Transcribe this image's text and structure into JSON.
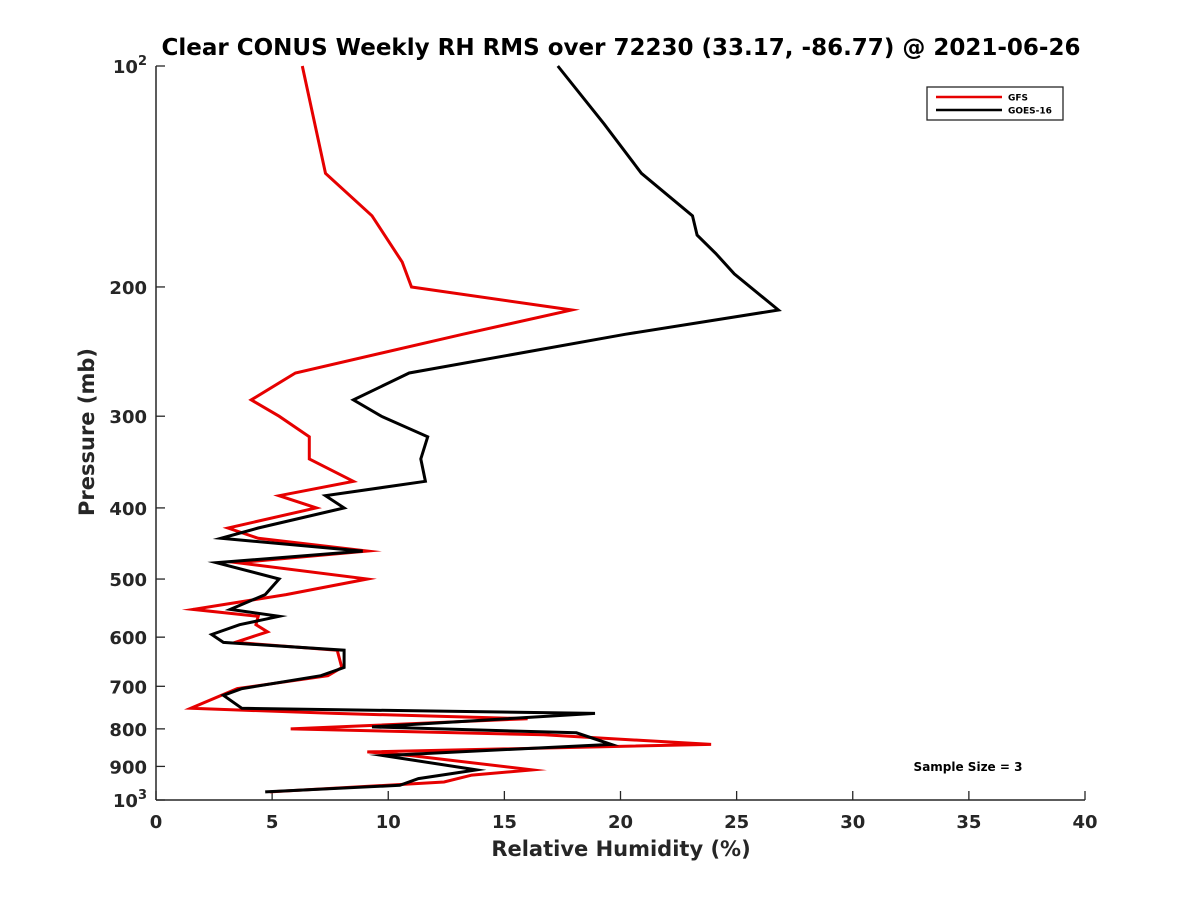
{
  "chart_data": {
    "type": "line",
    "title": "Clear CONUS Weekly RH RMS over 72230 (33.17, -86.77) @ 2021-06-26",
    "xlabel": "Relative Humidity (%)",
    "ylabel": "Pressure (mb)",
    "xlim": [
      0,
      40
    ],
    "ylim": [
      100,
      1000
    ],
    "yscale": "log",
    "y_reversed": true,
    "x_ticks": [
      0,
      5,
      10,
      15,
      20,
      25,
      30,
      35,
      40
    ],
    "x_tick_labels": [
      "0",
      "5",
      "10",
      "15",
      "20",
      "25",
      "30",
      "35",
      "40"
    ],
    "y_ticks": [
      100,
      200,
      300,
      400,
      500,
      600,
      700,
      800,
      900,
      1000
    ],
    "y_tick_labels": [
      {
        "base": "10",
        "sup": "2"
      },
      {
        "base": "200"
      },
      {
        "base": "300"
      },
      {
        "base": "400"
      },
      {
        "base": "500"
      },
      {
        "base": "600"
      },
      {
        "base": "700"
      },
      {
        "base": "800"
      },
      {
        "base": "900"
      },
      {
        "base": "10",
        "sup": "3"
      }
    ],
    "legend_position": "top-right",
    "annotation": "Sample Size = 3",
    "series": [
      {
        "name": "GFS",
        "color": "#e60000",
        "points": [
          [
            6.3,
            100
          ],
          [
            7.3,
            140
          ],
          [
            9.3,
            160
          ],
          [
            10.6,
            185
          ],
          [
            11.0,
            200
          ],
          [
            17.9,
            215
          ],
          [
            13.2,
            232
          ],
          [
            6.0,
            262
          ],
          [
            4.1,
            285
          ],
          [
            5.3,
            300
          ],
          [
            6.6,
            320
          ],
          [
            6.6,
            343
          ],
          [
            8.5,
            368
          ],
          [
            5.3,
            385
          ],
          [
            6.9,
            400
          ],
          [
            3.1,
            426
          ],
          [
            4.4,
            440
          ],
          [
            9.1,
            458
          ],
          [
            3.5,
            475
          ],
          [
            9.1,
            500
          ],
          [
            5.6,
            525
          ],
          [
            1.6,
            550
          ],
          [
            4.4,
            562
          ],
          [
            4.3,
            577
          ],
          [
            4.8,
            590
          ],
          [
            3.4,
            610
          ],
          [
            7.8,
            625
          ],
          [
            8.0,
            660
          ],
          [
            7.4,
            677
          ],
          [
            3.5,
            705
          ],
          [
            1.5,
            750
          ],
          [
            7.7,
            762
          ],
          [
            16.0,
            775
          ],
          [
            5.8,
            800
          ],
          [
            16.7,
            815
          ],
          [
            23.9,
            840
          ],
          [
            9.1,
            860
          ],
          [
            11.0,
            870
          ],
          [
            16.2,
            910
          ],
          [
            13.6,
            925
          ],
          [
            12.4,
            945
          ],
          [
            4.9,
            975
          ]
        ]
      },
      {
        "name": "GOES-16",
        "color": "#000000",
        "points": [
          [
            17.3,
            100
          ],
          [
            19.3,
            120
          ],
          [
            20.9,
            140
          ],
          [
            23.1,
            160
          ],
          [
            23.3,
            170
          ],
          [
            24.1,
            180
          ],
          [
            24.9,
            192
          ],
          [
            26.8,
            215
          ],
          [
            20.2,
            232
          ],
          [
            10.9,
            262
          ],
          [
            8.5,
            285
          ],
          [
            9.7,
            300
          ],
          [
            11.7,
            320
          ],
          [
            11.4,
            343
          ],
          [
            11.6,
            368
          ],
          [
            7.3,
            385
          ],
          [
            8.1,
            400
          ],
          [
            4.4,
            426
          ],
          [
            2.8,
            440
          ],
          [
            8.9,
            458
          ],
          [
            2.6,
            475
          ],
          [
            5.3,
            500
          ],
          [
            4.7,
            525
          ],
          [
            3.2,
            550
          ],
          [
            5.3,
            562
          ],
          [
            3.6,
            577
          ],
          [
            2.4,
            595
          ],
          [
            2.9,
            610
          ],
          [
            8.1,
            625
          ],
          [
            8.1,
            660
          ],
          [
            7.1,
            677
          ],
          [
            3.7,
            705
          ],
          [
            2.9,
            720
          ],
          [
            3.7,
            750
          ],
          [
            18.9,
            762
          ],
          [
            9.3,
            795
          ],
          [
            18.1,
            810
          ],
          [
            19.6,
            840
          ],
          [
            9.8,
            870
          ],
          [
            13.8,
            910
          ],
          [
            11.3,
            935
          ],
          [
            10.5,
            955
          ],
          [
            4.7,
            975
          ]
        ]
      }
    ]
  }
}
